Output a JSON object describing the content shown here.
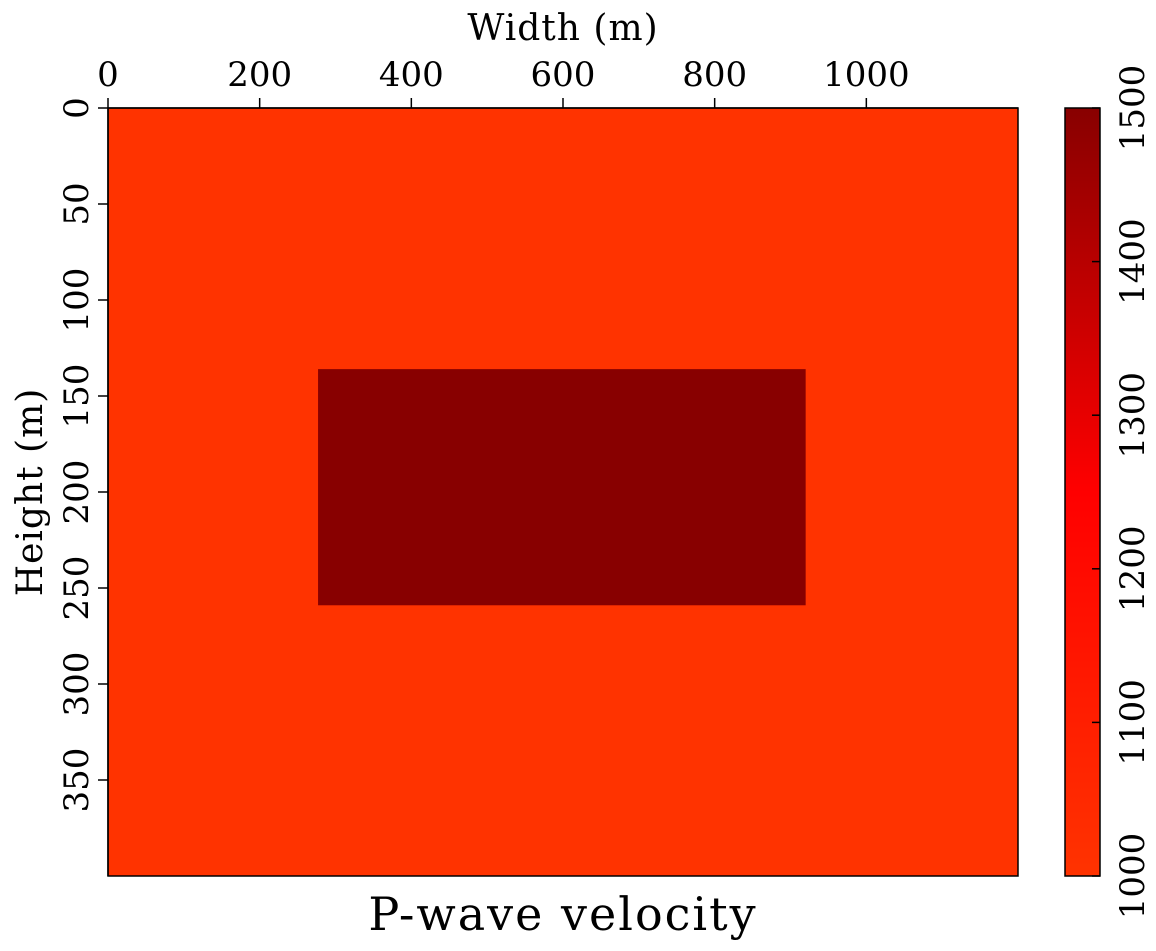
{
  "chart_data": {
    "type": "heatmap",
    "title": "P-wave velocity",
    "xlabel": "Width (m)",
    "ylabel": "Height (m)",
    "xlim": [
      0,
      1200
    ],
    "ylim": [
      0,
      400
    ],
    "x_ticks": [
      0,
      200,
      400,
      600,
      800,
      1000
    ],
    "y_ticks": [
      0,
      50,
      100,
      150,
      200,
      250,
      300,
      350
    ],
    "x_axis_position": "top",
    "y_axis_inverted": true,
    "grid": false,
    "background_value": 1000,
    "regions": [
      {
        "x_range": [
          277,
          920
        ],
        "y_range": [
          136,
          259
        ],
        "value": 1500
      }
    ],
    "colorbar": {
      "min": 1000,
      "max": 1500,
      "ticks": [
        1000,
        1100,
        1200,
        1300,
        1400,
        1500
      ],
      "placement": "right",
      "colormap": [
        "#ff3300",
        "#ff0000",
        "#880000"
      ]
    }
  }
}
